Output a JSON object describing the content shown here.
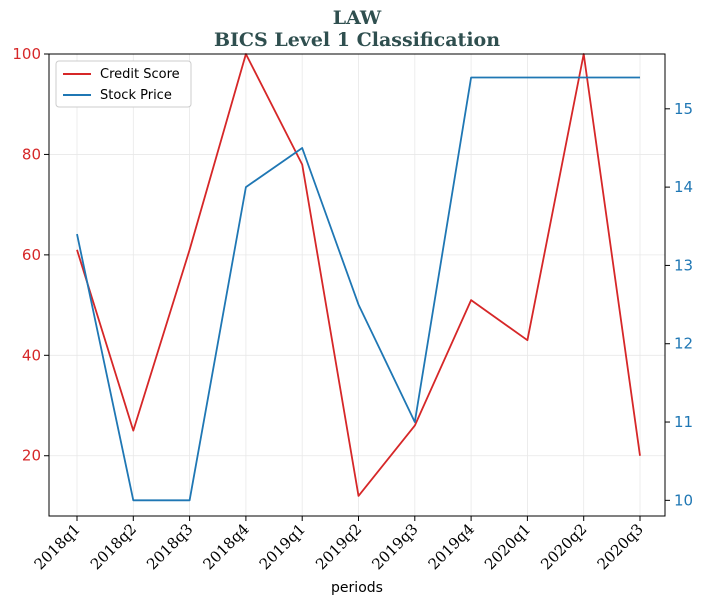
{
  "chart_data": {
    "type": "line",
    "title": "LAW",
    "subtitle": "BICS Level 1 Classification",
    "xlabel": "periods",
    "categories": [
      "2018q1",
      "2018q2",
      "2018q3",
      "2018q4",
      "2019q1",
      "2019q2",
      "2019q3",
      "2019q4",
      "2020q1",
      "2020q2",
      "2020q3"
    ],
    "series": [
      {
        "name": "Credit Score",
        "axis": "left",
        "color": "#d62728",
        "values": [
          61,
          25,
          61,
          100,
          78,
          12,
          26,
          51,
          43,
          100,
          20
        ]
      },
      {
        "name": "Stock Price",
        "axis": "right",
        "color": "#1f77b4",
        "values": [
          13.4,
          10.0,
          10.0,
          14.0,
          14.5,
          12.5,
          11.0,
          15.4,
          15.4,
          15.4,
          15.4
        ]
      }
    ],
    "ylim_left": [
      8,
      100
    ],
    "yticks_left": [
      20,
      40,
      60,
      80,
      100
    ],
    "ylim_right": [
      9.8,
      15.7
    ],
    "yticks_right": [
      10,
      11,
      12,
      13,
      14,
      15
    ],
    "left_tick_color": "#d62728",
    "right_tick_color": "#1f77b4",
    "grid": true,
    "legend_position": "top-left"
  }
}
